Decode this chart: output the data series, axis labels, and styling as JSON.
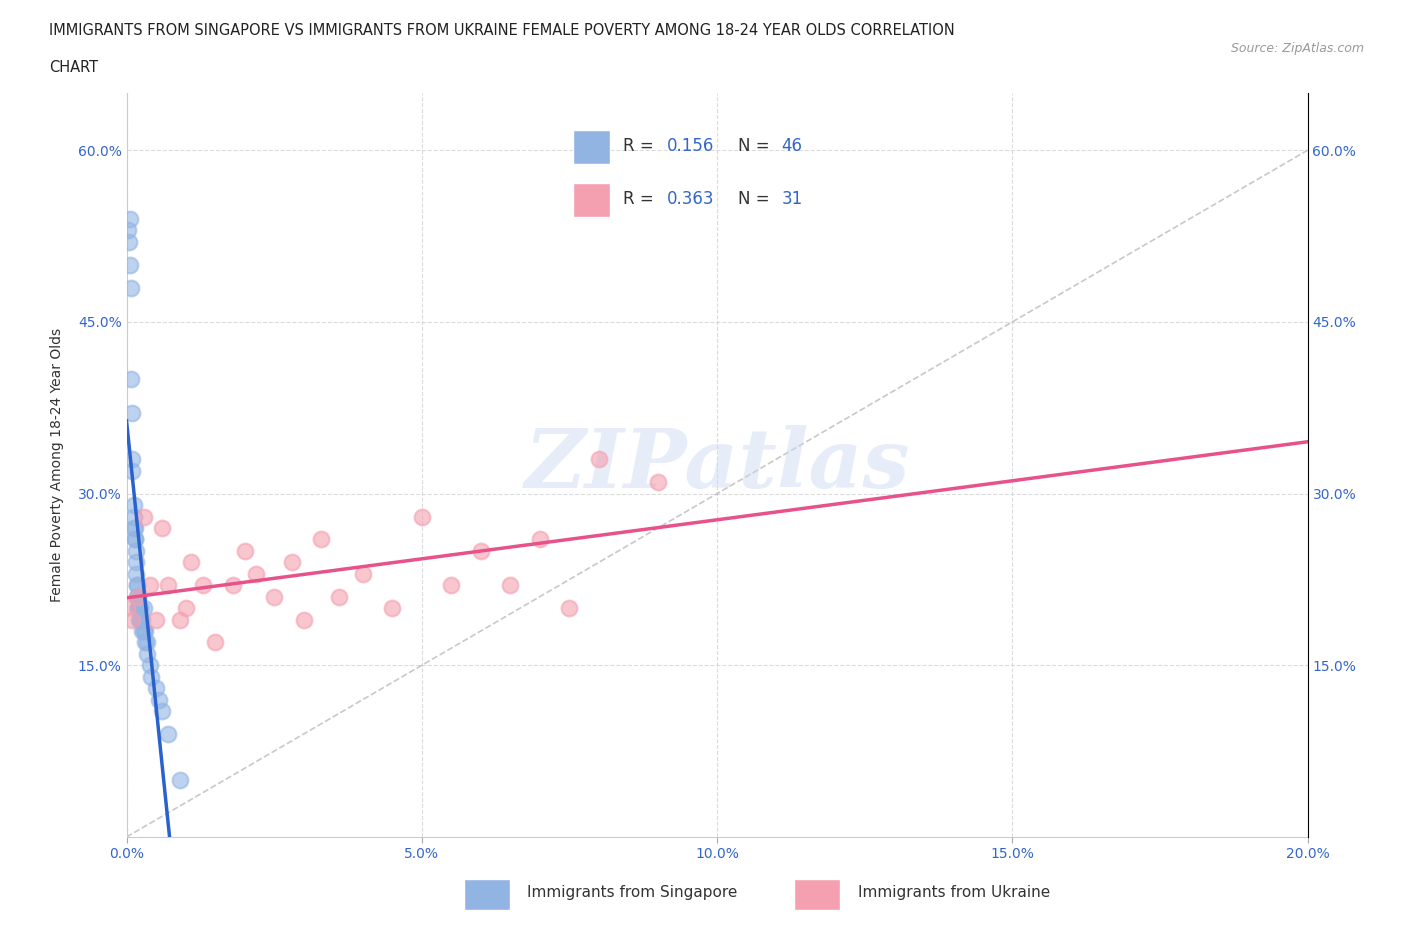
{
  "title_line1": "IMMIGRANTS FROM SINGAPORE VS IMMIGRANTS FROM UKRAINE FEMALE POVERTY AMONG 18-24 YEAR OLDS CORRELATION",
  "title_line2": "CHART",
  "source": "Source: ZipAtlas.com",
  "ylabel": "Female Poverty Among 18-24 Year Olds",
  "xlim": [
    0.0,
    0.2
  ],
  "ylim": [
    0.0,
    0.65
  ],
  "xticks": [
    0.0,
    0.05,
    0.1,
    0.15,
    0.2
  ],
  "xtick_labels": [
    "0.0%",
    "5.0%",
    "10.0%",
    "15.0%",
    "20.0%"
  ],
  "yticks": [
    0.0,
    0.15,
    0.3,
    0.45,
    0.6
  ],
  "ytick_labels": [
    "",
    "15.0%",
    "30.0%",
    "45.0%",
    "60.0%"
  ],
  "singapore_color": "#92b4e3",
  "ukraine_color": "#f4a0b0",
  "singapore_line_color": "#2962cc",
  "ukraine_line_color": "#e8528a",
  "diagonal_color": "#aaaaaa",
  "R_singapore": 0.156,
  "N_singapore": 46,
  "R_ukraine": 0.363,
  "N_ukraine": 31,
  "watermark": "ZIPatlas",
  "singapore_x": [
    0.0002,
    0.0004,
    0.0006,
    0.0006,
    0.0007,
    0.0008,
    0.0009,
    0.001,
    0.001,
    0.0012,
    0.0013,
    0.0013,
    0.0014,
    0.0015,
    0.0015,
    0.0016,
    0.0016,
    0.0016,
    0.0017,
    0.0017,
    0.0018,
    0.0018,
    0.0019,
    0.002,
    0.002,
    0.002,
    0.0021,
    0.0022,
    0.0022,
    0.0023,
    0.0025,
    0.0026,
    0.0027,
    0.003,
    0.003,
    0.0031,
    0.0032,
    0.0034,
    0.0035,
    0.004,
    0.0042,
    0.005,
    0.0055,
    0.006,
    0.007,
    0.009
  ],
  "singapore_y": [
    0.53,
    0.52,
    0.54,
    0.5,
    0.48,
    0.4,
    0.37,
    0.33,
    0.32,
    0.29,
    0.28,
    0.27,
    0.26,
    0.27,
    0.26,
    0.25,
    0.24,
    0.23,
    0.22,
    0.22,
    0.21,
    0.21,
    0.2,
    0.21,
    0.2,
    0.2,
    0.19,
    0.2,
    0.19,
    0.2,
    0.19,
    0.19,
    0.18,
    0.2,
    0.18,
    0.18,
    0.17,
    0.17,
    0.16,
    0.15,
    0.14,
    0.13,
    0.12,
    0.11,
    0.09,
    0.05
  ],
  "ukraine_x": [
    0.0,
    0.001,
    0.002,
    0.003,
    0.004,
    0.005,
    0.006,
    0.007,
    0.009,
    0.01,
    0.011,
    0.013,
    0.015,
    0.018,
    0.02,
    0.022,
    0.025,
    0.028,
    0.03,
    0.033,
    0.036,
    0.04,
    0.045,
    0.05,
    0.055,
    0.06,
    0.065,
    0.07,
    0.075,
    0.08,
    0.09
  ],
  "ukraine_y": [
    0.2,
    0.19,
    0.21,
    0.28,
    0.22,
    0.19,
    0.27,
    0.22,
    0.19,
    0.2,
    0.24,
    0.22,
    0.17,
    0.22,
    0.25,
    0.23,
    0.21,
    0.24,
    0.19,
    0.26,
    0.21,
    0.23,
    0.2,
    0.28,
    0.22,
    0.25,
    0.22,
    0.26,
    0.2,
    0.33,
    0.31
  ]
}
